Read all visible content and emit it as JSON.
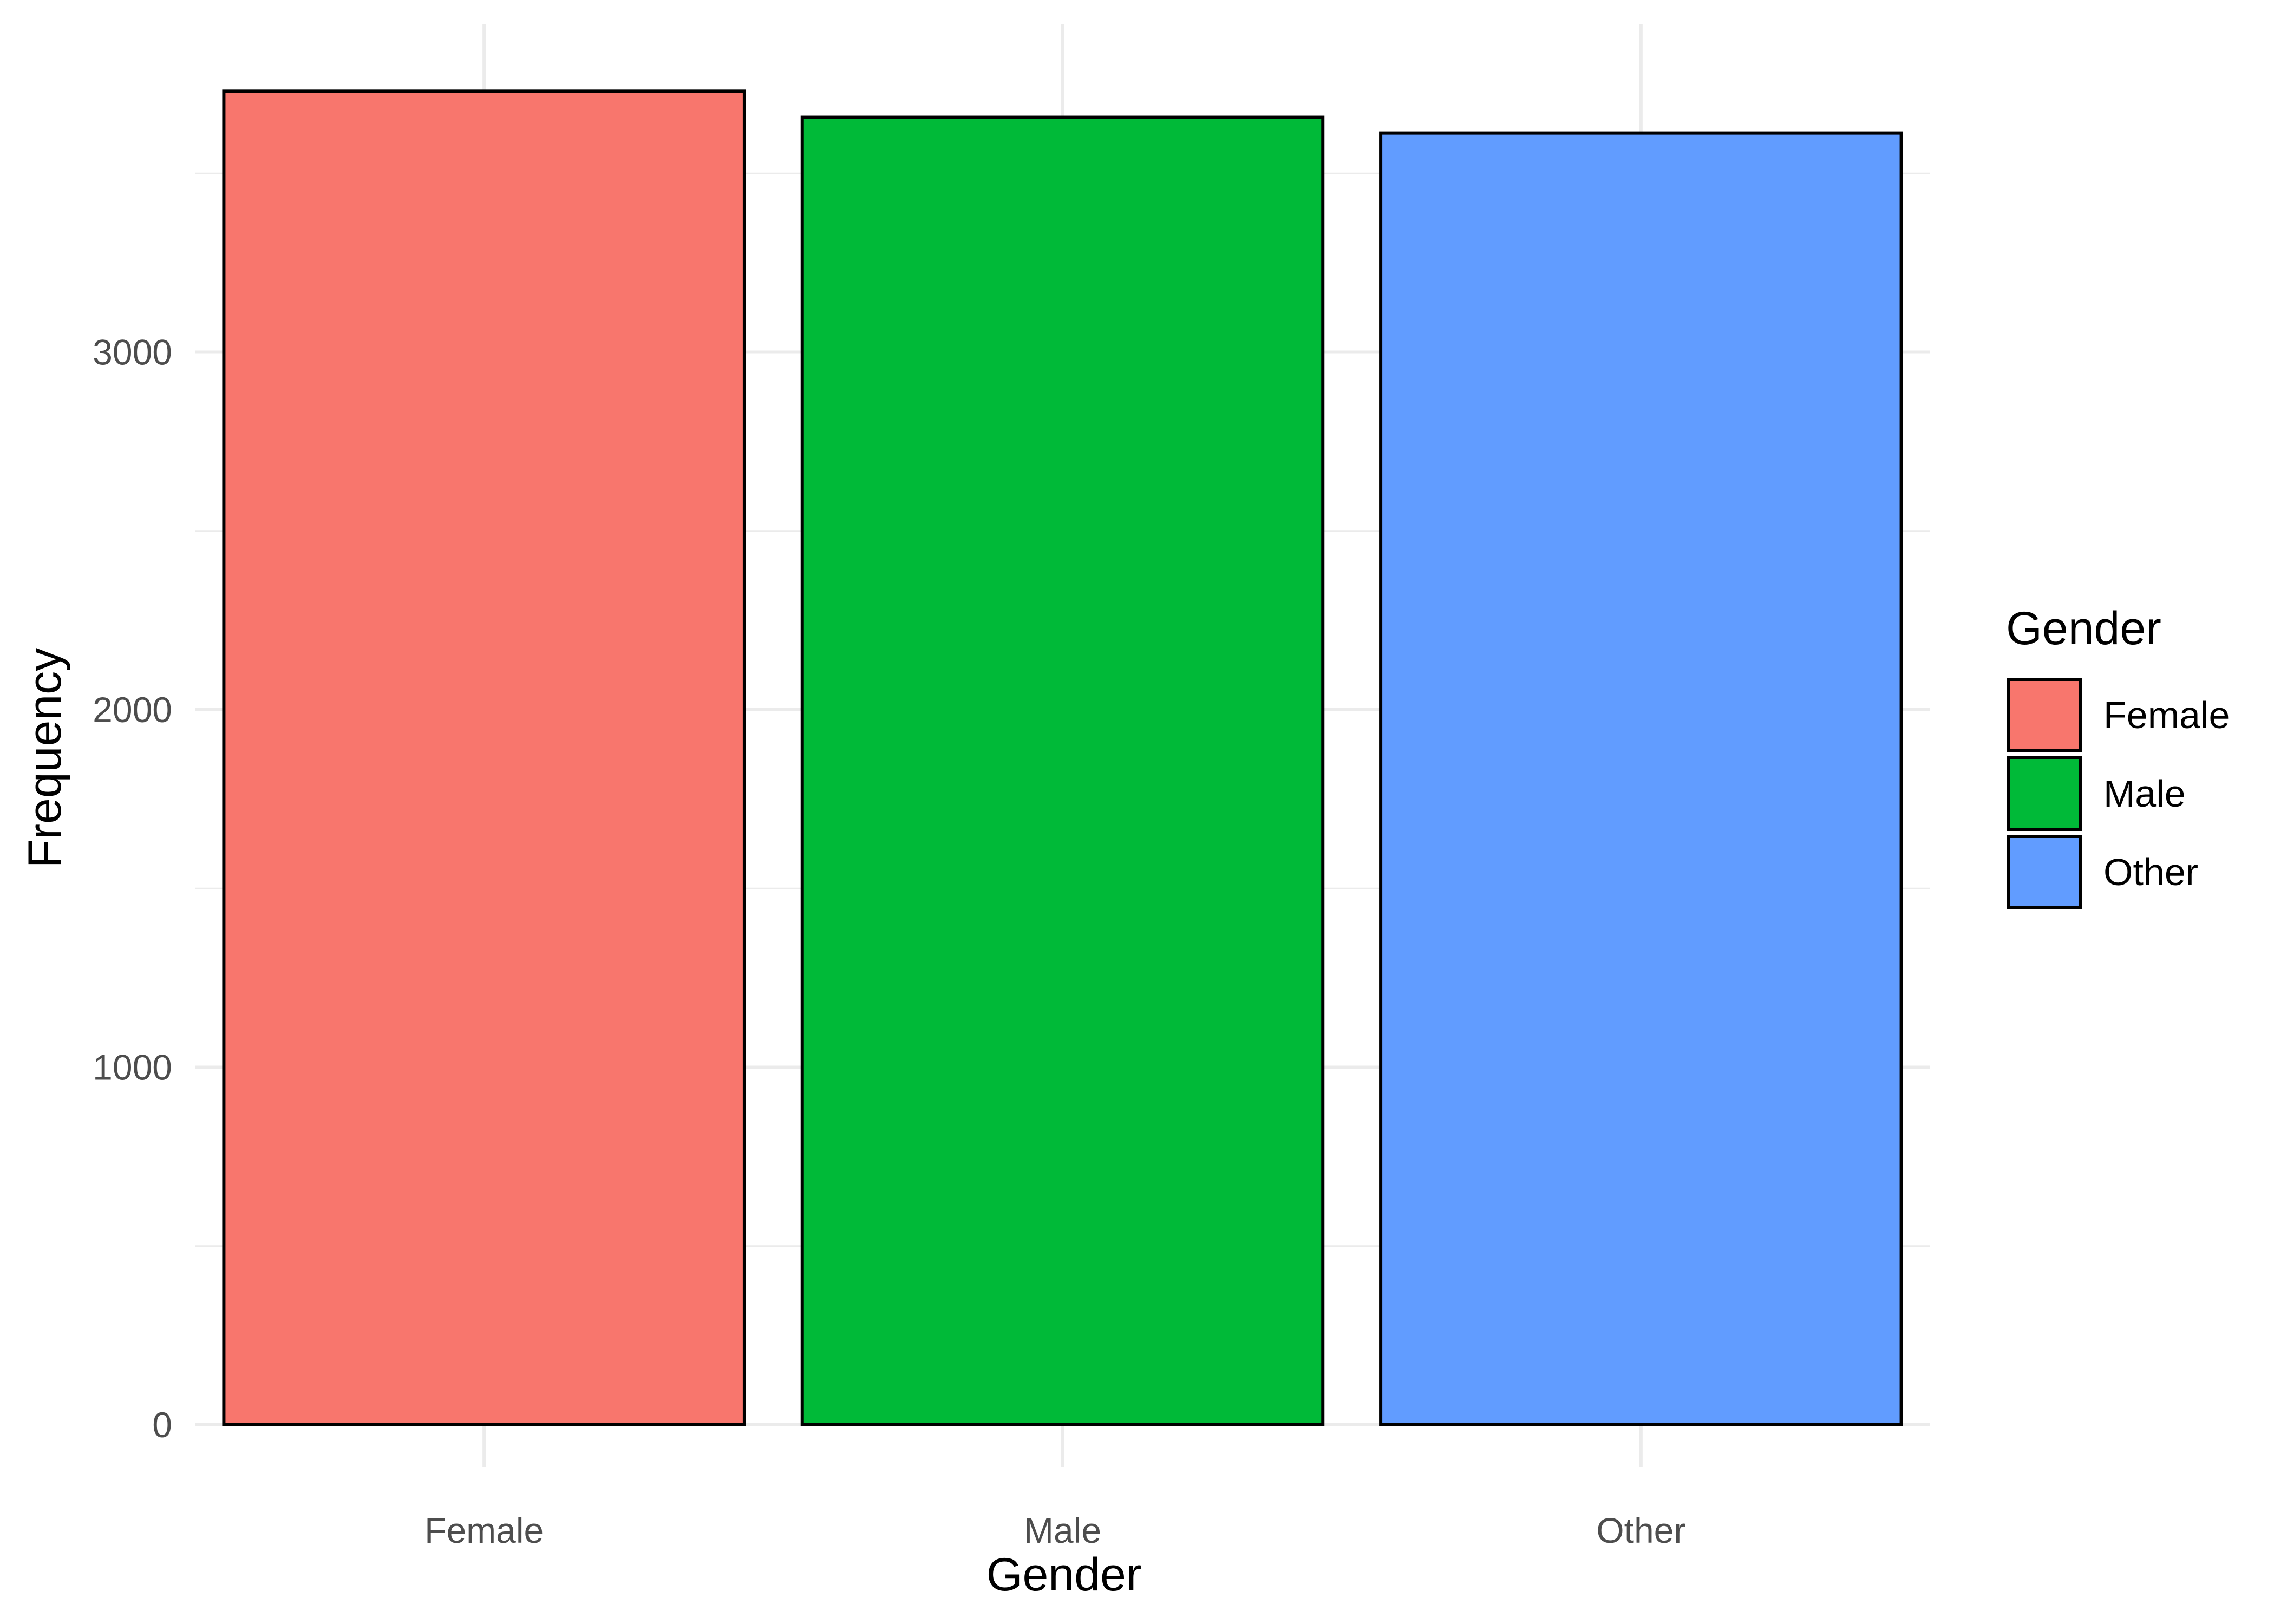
{
  "chart_data": {
    "type": "bar",
    "title": "",
    "xlabel": "Gender",
    "ylabel": "Frequency",
    "categories": [
      "Female",
      "Male",
      "Other"
    ],
    "values": [
      3730,
      3657,
      3613
    ],
    "colors": [
      "#F8766D",
      "#00BA38",
      "#619CFF"
    ],
    "bar_outline_color": "#000000",
    "ylim": [
      0,
      3900
    ],
    "yticks": [
      0,
      1000,
      2000,
      3000
    ],
    "yticks_labels": [
      "0",
      "1000",
      "2000",
      "3000"
    ],
    "grid": true,
    "legend": {
      "title": "Gender",
      "position": "right",
      "entries": [
        "Female",
        "Male",
        "Other"
      ]
    }
  }
}
